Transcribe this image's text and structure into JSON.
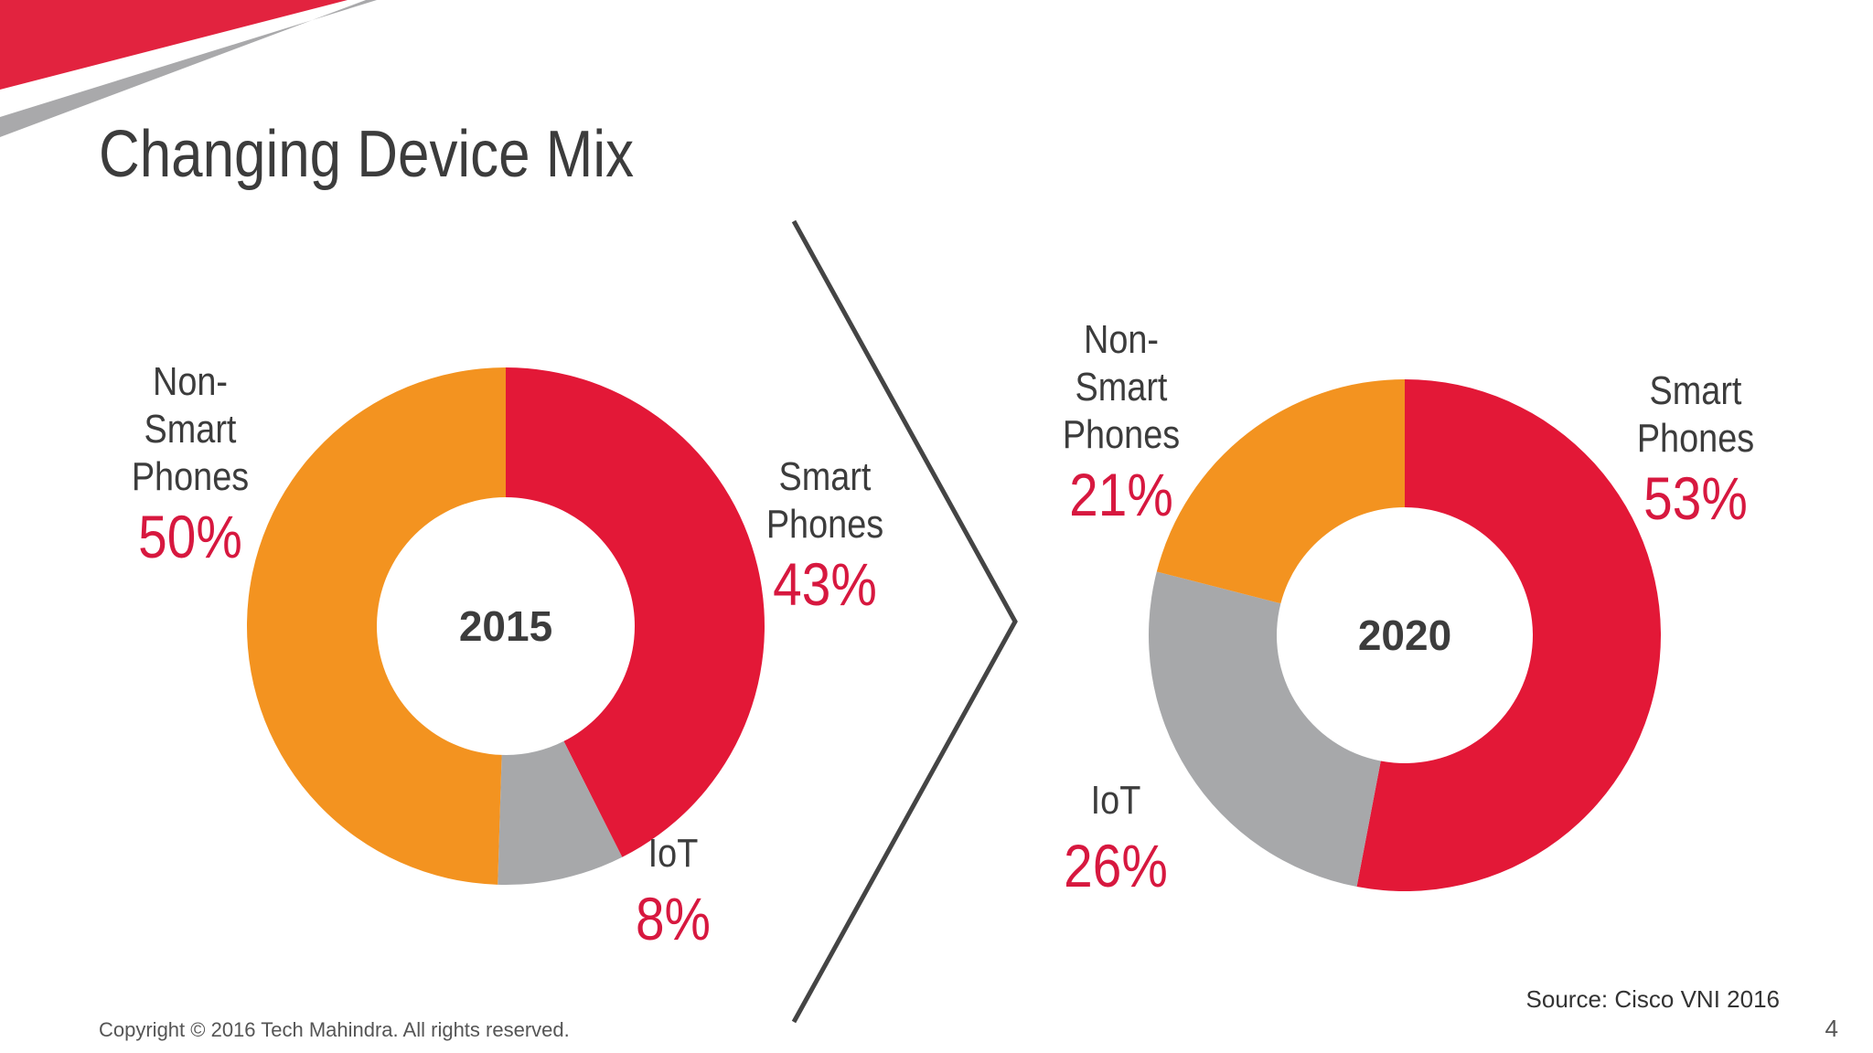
{
  "slide": {
    "title": "Changing Device Mix",
    "copyright": "Copyright © 2016 Tech Mahindra. All rights reserved.",
    "source": "Source: Cisco VNI 2016",
    "page_number": "4"
  },
  "colors": {
    "smart_phones": "#e31837",
    "iot": "#a7a8aa",
    "non_smart_phones": "#f39320",
    "accent_red": "#d7183f",
    "text_dark": "#3c3c3c"
  },
  "chart_data": [
    {
      "type": "pie",
      "variant": "donut",
      "center_label": "2015",
      "categories": [
        "Smart Phones",
        "IoT",
        "Non-Smart Phones"
      ],
      "values": [
        43,
        8,
        50
      ],
      "labels": {
        "smart": {
          "line1": "Smart",
          "line2": "Phones",
          "pct": "43%"
        },
        "iot": {
          "line1": "IoT",
          "pct": "8%"
        },
        "nonsmart": {
          "line1": "Non-",
          "line2": "Smart",
          "line3": "Phones",
          "pct": "50%"
        }
      }
    },
    {
      "type": "pie",
      "variant": "donut",
      "center_label": "2020",
      "categories": [
        "Smart Phones",
        "IoT",
        "Non-Smart Phones"
      ],
      "values": [
        53,
        26,
        21
      ],
      "labels": {
        "smart": {
          "line1": "Smart",
          "line2": "Phones",
          "pct": "53%"
        },
        "iot": {
          "line1": "IoT",
          "pct": "26%"
        },
        "nonsmart": {
          "line1": "Non-",
          "line2": "Smart",
          "line3": "Phones",
          "pct": "21%"
        }
      }
    }
  ]
}
